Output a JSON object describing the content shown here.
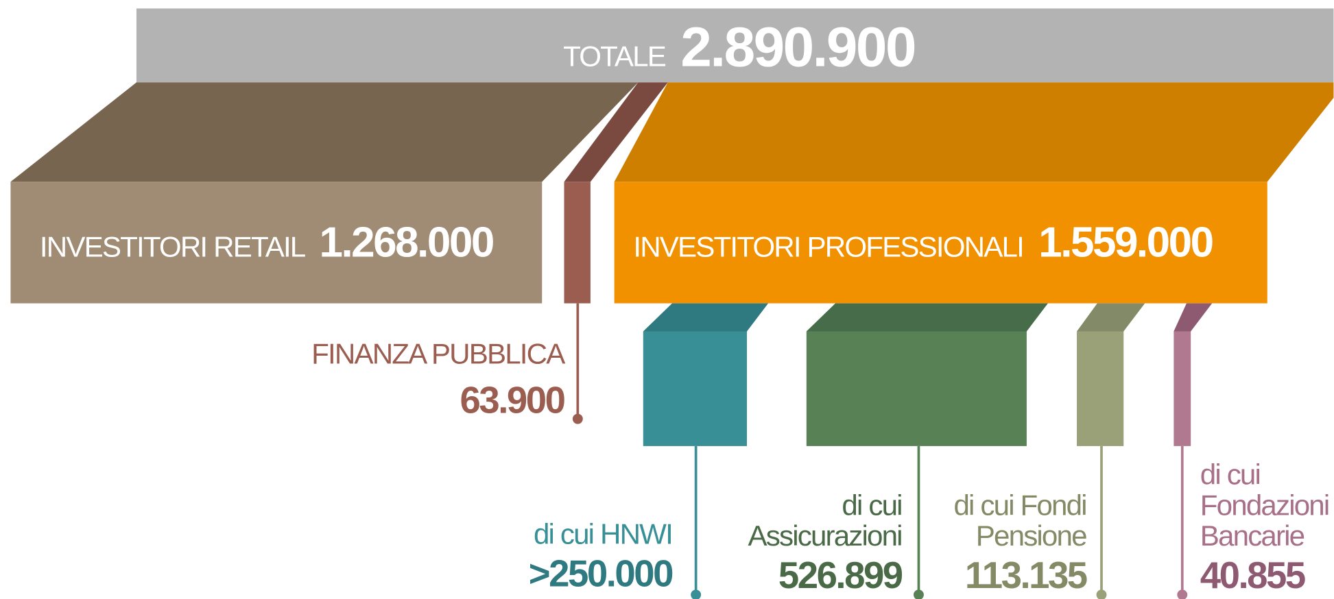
{
  "total": {
    "label": "TOTALE",
    "value": "2.890.900"
  },
  "segments": [
    {
      "label": "INVESTITORI RETAIL",
      "value": "1.268.000"
    },
    {
      "label": "FINANZA PUBBLICA",
      "value": "63.900"
    },
    {
      "label": "INVESTITORI PROFESSIONALI",
      "value": "1.559.000"
    }
  ],
  "breakdown": [
    {
      "lines": [
        "di cui HNWI"
      ],
      "value": ">250.000"
    },
    {
      "lines": [
        "di cui",
        "Assicurazioni"
      ],
      "value": "526.899"
    },
    {
      "lines": [
        "di cui Fondi",
        "Pensione"
      ],
      "value": "113.135"
    },
    {
      "lines": [
        "di cui",
        "Fondazioni",
        "Bancarie"
      ],
      "value": "40.855"
    }
  ]
}
